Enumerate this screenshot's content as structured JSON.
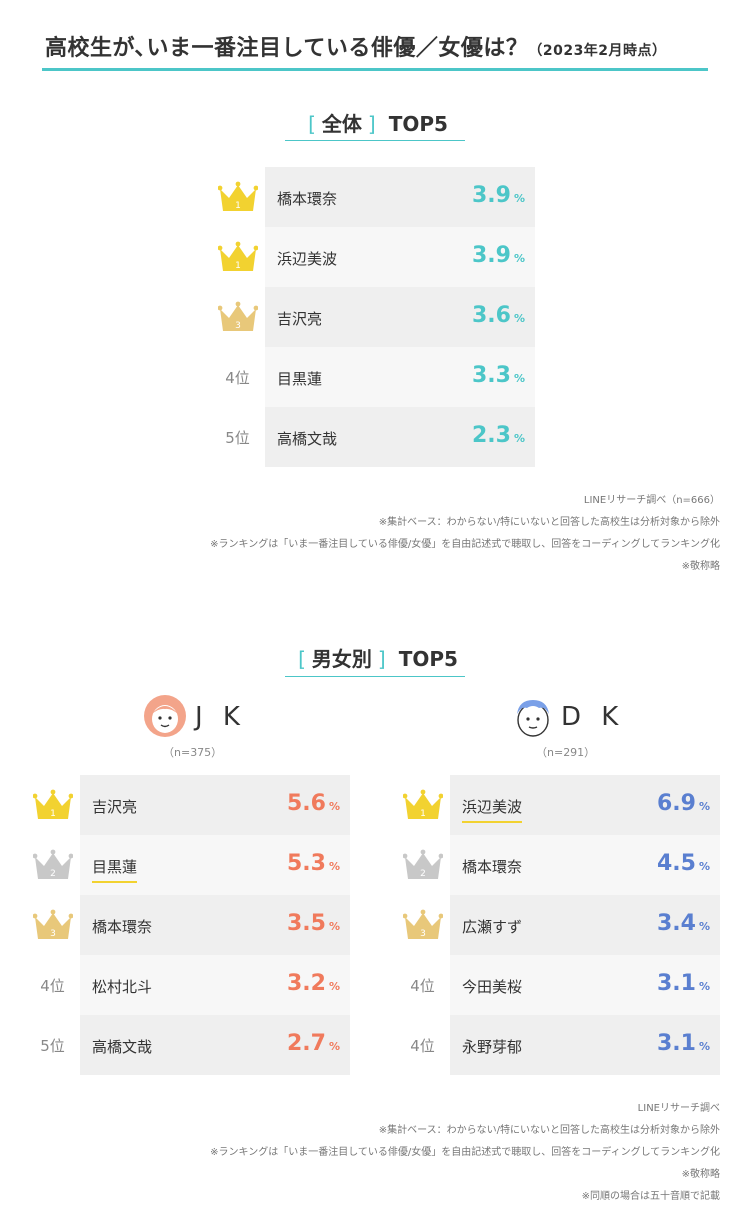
{
  "title": {
    "main": "高校生が､いま一番注目している俳優／女優は？",
    "date": "（2023年2月時点）"
  },
  "colors": {
    "teal": "#4cc6c8",
    "coral": "#f07a5c",
    "blue": "#5a7fd0",
    "gold": "#f2d230",
    "silver": "#c8c8c8",
    "bronze": "#e8c87a"
  },
  "overall": {
    "bracket_open": "[",
    "label": "全体",
    "bracket_close": "]",
    "suffix": "TOP5",
    "rows": [
      {
        "rank": "1",
        "medal": "gold",
        "name": "橋本環奈",
        "value": "3.9",
        "unit": "%"
      },
      {
        "rank": "1",
        "medal": "gold",
        "name": "浜辺美波",
        "value": "3.9",
        "unit": "%"
      },
      {
        "rank": "3",
        "medal": "bronze",
        "name": "吉沢亮",
        "value": "3.6",
        "unit": "%"
      },
      {
        "rank": "4位",
        "medal": "",
        "name": "目黒蓮",
        "value": "3.3",
        "unit": "%"
      },
      {
        "rank": "5位",
        "medal": "",
        "name": "高橋文哉",
        "value": "2.3",
        "unit": "%"
      }
    ],
    "notes": [
      "LINEリサーチ調べ（n=666）",
      "※集計ベース：わからない/特にいないと回答した高校生は分析対象から除外",
      "※ランキングは「いま一番注目している俳優/女優」を自由記述式で聴取し、回答をコーディングしてランキング化",
      "※敬称略"
    ]
  },
  "gender": {
    "bracket_open": "[",
    "label": "男女別",
    "bracket_close": "]",
    "suffix": "TOP5",
    "jk": {
      "label": "J K",
      "n": "（n=375）",
      "avatar": "girl-face-icon",
      "rows": [
        {
          "rank": "1",
          "medal": "gold",
          "name": "吉沢亮",
          "value": "5.6",
          "unit": "%",
          "underline": false
        },
        {
          "rank": "2",
          "medal": "silver",
          "name": "目黒蓮",
          "value": "5.3",
          "unit": "%",
          "underline": true
        },
        {
          "rank": "3",
          "medal": "bronze",
          "name": "橋本環奈",
          "value": "3.5",
          "unit": "%",
          "underline": false
        },
        {
          "rank": "4位",
          "medal": "",
          "name": "松村北斗",
          "value": "3.2",
          "unit": "%",
          "underline": false
        },
        {
          "rank": "5位",
          "medal": "",
          "name": "高橋文哉",
          "value": "2.7",
          "unit": "%",
          "underline": false
        }
      ]
    },
    "dk": {
      "label": "D K",
      "n": "（n=291）",
      "avatar": "boy-face-icon",
      "rows": [
        {
          "rank": "1",
          "medal": "gold",
          "name": "浜辺美波",
          "value": "6.9",
          "unit": "%",
          "underline": true
        },
        {
          "rank": "2",
          "medal": "silver",
          "name": "橋本環奈",
          "value": "4.5",
          "unit": "%",
          "underline": false
        },
        {
          "rank": "3",
          "medal": "bronze",
          "name": "広瀬すず",
          "value": "3.4",
          "unit": "%",
          "underline": false
        },
        {
          "rank": "4位",
          "medal": "",
          "name": "今田美桜",
          "value": "3.1",
          "unit": "%",
          "underline": false
        },
        {
          "rank": "4位",
          "medal": "",
          "name": "永野芽郁",
          "value": "3.1",
          "unit": "%",
          "underline": false
        }
      ]
    },
    "notes": [
      "LINEリサーチ調べ",
      "※集計ベース：わからない/特にいないと回答した高校生は分析対象から除外",
      "※ランキングは「いま一番注目している俳優/女優」を自由記述式で聴取し、回答をコーディングしてランキング化",
      "※敬称略",
      "※同順の場合は五十音順で記載"
    ]
  }
}
